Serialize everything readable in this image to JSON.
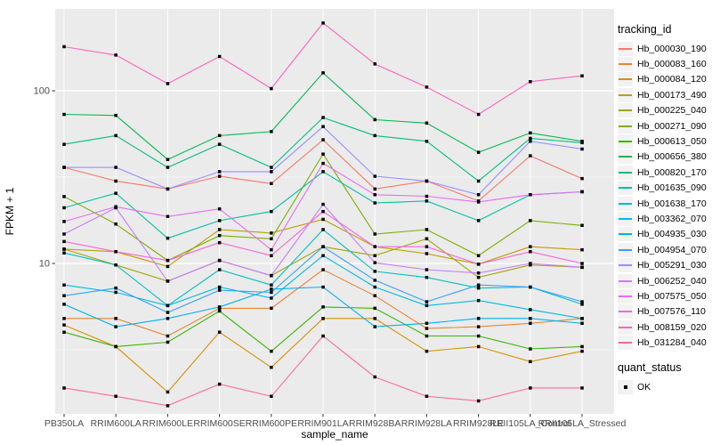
{
  "figure": {
    "ylabel": "FPKM + 1",
    "xlabel": "sample_name",
    "tracking_legend_title": "tracking_id",
    "quant_legend_title": "quant_status",
    "quant_ok_label": "OK"
  },
  "colors": {
    "panel_bg": "#EBEBEB",
    "grid": "#FFFFFF",
    "legend_key_bg": "#F2F2F2",
    "tick_text": "#4D4D4D",
    "axis_title": "#000000",
    "marker": "#000000"
  },
  "chart_data": {
    "type": "line",
    "title": "",
    "xlabel": "sample_name",
    "ylabel": "FPKM + 1",
    "y_scale": "log10",
    "ylim": [
      1.35,
      300
    ],
    "yticks": [
      10,
      100
    ],
    "y_minor_gridlines": [
      3.162,
      31.62
    ],
    "grid": true,
    "legend_position": "right",
    "legend_title": "tracking_id",
    "quant_status_legend": {
      "title": "quant_status",
      "entries": [
        "OK"
      ],
      "marker": "black-square"
    },
    "categories": [
      "PB350LA",
      "RRIM600LA",
      "RRIM600LE",
      "RRIM600SE",
      "RRIM600PE",
      "RRIM901LA",
      "RRIM928BA",
      "RRIM928LA",
      "RRIM928LE",
      "RRII105LA_Control",
      "RRII105LA_Stressed"
    ],
    "series": [
      {
        "name": "Hb_000030_190",
        "color": "#F8766D",
        "values": [
          36,
          30,
          27,
          32,
          29,
          52,
          27,
          30,
          23,
          42,
          31
        ]
      },
      {
        "name": "Hb_000083_160",
        "color": "#EA8331",
        "values": [
          4.8,
          4.8,
          3.8,
          5.5,
          5.5,
          9.2,
          6.5,
          4.2,
          4.3,
          4.5,
          4.8
        ]
      },
      {
        "name": "Hb_000084_120",
        "color": "#D89000",
        "values": [
          4.4,
          3.3,
          1.8,
          4.0,
          2.5,
          4.8,
          4.8,
          3.1,
          3.3,
          2.7,
          3.1
        ]
      },
      {
        "name": "Hb_000173_490",
        "color": "#C09B00",
        "values": [
          12.1,
          11.7,
          9.6,
          15.7,
          15.0,
          18.0,
          12.5,
          11.4,
          9.9,
          12.5,
          12.0
        ]
      },
      {
        "name": "Hb_000225_040",
        "color": "#A3A500",
        "values": [
          12.1,
          9.8,
          7.9,
          10.4,
          8.5,
          12.5,
          11.1,
          13.9,
          8.3,
          9.8,
          9.5
        ]
      },
      {
        "name": "Hb_000271_090",
        "color": "#7CAE00",
        "values": [
          24.4,
          16.9,
          10.4,
          14.5,
          13.9,
          43.0,
          14.8,
          15.7,
          11.1,
          17.7,
          16.6
        ]
      },
      {
        "name": "Hb_000613_050",
        "color": "#39B600",
        "values": [
          4.0,
          3.3,
          3.5,
          5.3,
          3.1,
          5.6,
          5.5,
          3.8,
          3.8,
          3.2,
          3.3
        ]
      },
      {
        "name": "Hb_000656_380",
        "color": "#00BB4E",
        "values": [
          73,
          72,
          40,
          55,
          58,
          127,
          68,
          65,
          44,
          57,
          51
        ]
      },
      {
        "name": "Hb_000820_170",
        "color": "#00BF7D",
        "values": [
          49,
          55,
          36,
          49,
          36,
          70,
          55,
          51,
          30,
          53,
          50
        ]
      },
      {
        "name": "Hb_001635_090",
        "color": "#00C1A3",
        "values": [
          21,
          25.5,
          14,
          17.7,
          20,
          34,
          22.4,
          23,
          17.7,
          25,
          26
        ]
      },
      {
        "name": "Hb_001638_170",
        "color": "#00BFC4",
        "values": [
          11.5,
          9.8,
          5.7,
          9.2,
          7.5,
          15.7,
          9.0,
          8.3,
          7.2,
          7.3,
          5.8
        ]
      },
      {
        "name": "Hb_003362_070",
        "color": "#00BAE0",
        "values": [
          7.5,
          6.8,
          5.7,
          7.3,
          6.3,
          11.1,
          7.3,
          5.7,
          6.1,
          5.4,
          4.8
        ]
      },
      {
        "name": "Hb_004935_030",
        "color": "#00B0F6",
        "values": [
          5.8,
          4.3,
          4.8,
          5.6,
          7.1,
          7.3,
          4.3,
          4.5,
          4.8,
          4.8,
          4.5
        ]
      },
      {
        "name": "Hb_004954_070",
        "color": "#35A2FF",
        "values": [
          6.5,
          7.2,
          5.2,
          7.0,
          6.8,
          12.5,
          8.0,
          6.0,
          7.5,
          7.3,
          6.0
        ]
      },
      {
        "name": "Hb_005291_030",
        "color": "#9590FF",
        "values": [
          36,
          36,
          27,
          34,
          34,
          62,
          32,
          30,
          25,
          51,
          46
        ]
      },
      {
        "name": "Hb_006252_040",
        "color": "#C77CFF",
        "values": [
          14.8,
          21,
          7.9,
          10.4,
          8.5,
          22,
          10.1,
          9.2,
          8.8,
          10,
          9.5
        ]
      },
      {
        "name": "Hb_007575_050",
        "color": "#E76BF3",
        "values": [
          17.5,
          21.3,
          18.7,
          20.7,
          12,
          38,
          25,
          24.5,
          22.7,
          25,
          26
        ]
      },
      {
        "name": "Hb_007576_110",
        "color": "#FA62DB",
        "values": [
          13.4,
          11.7,
          10.4,
          13.2,
          11.1,
          20,
          12.5,
          12.5,
          9.9,
          11.7,
          10
        ]
      },
      {
        "name": "Hb_008159_020",
        "color": "#FF62BC",
        "values": [
          180,
          161,
          110,
          158,
          103,
          247,
          143,
          105,
          73,
          113,
          122
        ]
      },
      {
        "name": "Hb_031284_040",
        "color": "#FF6A98",
        "values": [
          1.9,
          1.7,
          1.5,
          2.0,
          1.7,
          3.8,
          2.2,
          1.7,
          1.6,
          1.9,
          1.9
        ]
      }
    ]
  }
}
